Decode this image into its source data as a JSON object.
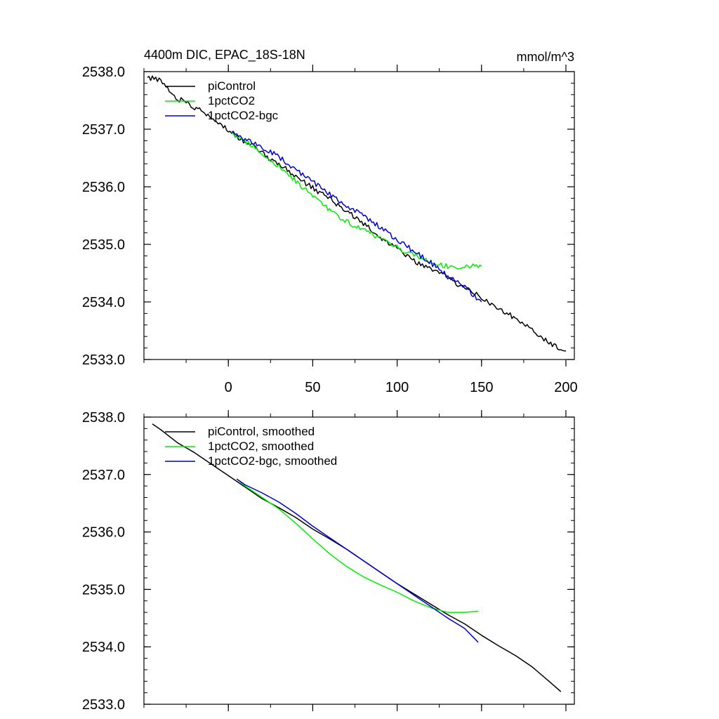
{
  "chart_data": [
    {
      "type": "line",
      "title": "4400m DIC, EPAC_18S-18N",
      "units": "mmol/m^3",
      "xlabel": "",
      "ylabel": "",
      "xlim": [
        -50,
        205
      ],
      "ylim": [
        2533.0,
        2538.0
      ],
      "xticks": [
        0,
        50,
        100,
        150,
        200
      ],
      "xtick_labels": [
        "0",
        "50",
        "100",
        "150",
        "200"
      ],
      "yticks": [
        2533,
        2534,
        2535,
        2536,
        2537,
        2538
      ],
      "ytick_labels": [
        "2533.0",
        "2534.0",
        "2535.0",
        "2536.0",
        "2537.0",
        "2538.0"
      ],
      "legend_position": "top-left",
      "series": [
        {
          "name": "piControl",
          "color": "#000000",
          "x": [
            -48,
            -40,
            -35,
            -30,
            -25,
            -20,
            -15,
            -10,
            -5,
            0,
            5,
            10,
            15,
            20,
            25,
            30,
            35,
            40,
            45,
            50,
            55,
            60,
            65,
            70,
            75,
            80,
            85,
            90,
            95,
            100,
            105,
            110,
            115,
            120,
            125,
            130,
            135,
            140,
            145,
            150,
            155,
            160,
            165,
            170,
            175,
            180,
            185,
            190,
            195,
            200
          ],
          "y": [
            2537.9,
            2537.85,
            2537.68,
            2537.52,
            2537.48,
            2537.38,
            2537.3,
            2537.2,
            2537.1,
            2536.98,
            2536.88,
            2536.78,
            2536.7,
            2536.58,
            2536.48,
            2536.4,
            2536.3,
            2536.18,
            2536.08,
            2535.98,
            2535.88,
            2535.8,
            2535.68,
            2535.58,
            2535.48,
            2535.35,
            2535.25,
            2535.12,
            2535.02,
            2534.92,
            2534.82,
            2534.72,
            2534.62,
            2534.58,
            2534.5,
            2534.42,
            2534.32,
            2534.25,
            2534.15,
            2534.08,
            2533.98,
            2533.9,
            2533.8,
            2533.72,
            2533.62,
            2533.5,
            2533.4,
            2533.3,
            2533.22,
            2533.15
          ]
        },
        {
          "name": "1pctCO2",
          "color": "#00ee00",
          "x": [
            2,
            10,
            20,
            30,
            40,
            50,
            55,
            60,
            70,
            80,
            90,
            100,
            110,
            120,
            130,
            135,
            140,
            145,
            150
          ],
          "y": [
            2536.95,
            2536.8,
            2536.58,
            2536.35,
            2536.1,
            2535.85,
            2535.72,
            2535.6,
            2535.4,
            2535.25,
            2535.1,
            2534.95,
            2534.8,
            2534.68,
            2534.62,
            2534.6,
            2534.62,
            2534.62,
            2534.62
          ]
        },
        {
          "name": "1pctCO2-bgc",
          "color": "#0000cc",
          "x": [
            2,
            10,
            20,
            30,
            40,
            50,
            60,
            70,
            80,
            90,
            100,
            110,
            120,
            130,
            140,
            150
          ],
          "y": [
            2536.95,
            2536.82,
            2536.68,
            2536.52,
            2536.3,
            2536.08,
            2535.88,
            2535.68,
            2535.5,
            2535.3,
            2535.08,
            2534.88,
            2534.68,
            2534.45,
            2534.25,
            2534.0
          ]
        }
      ]
    },
    {
      "type": "line",
      "title": "",
      "xlabel": "",
      "ylabel": "",
      "xlim": [
        -50,
        205
      ],
      "ylim": [
        2533.0,
        2538.0
      ],
      "xticks": [
        0,
        50,
        100,
        150,
        200
      ],
      "yticks": [
        2533,
        2534,
        2535,
        2536,
        2537,
        2538
      ],
      "ytick_labels": [
        "2533.0",
        "2534.0",
        "2535.0",
        "2536.0",
        "2537.0",
        "2538.0"
      ],
      "legend_position": "top-left",
      "series": [
        {
          "name": "piControl, smoothed",
          "color": "#000000",
          "x": [
            -45,
            -40,
            -30,
            -20,
            -10,
            0,
            10,
            20,
            30,
            40,
            50,
            60,
            70,
            80,
            90,
            100,
            110,
            120,
            130,
            140,
            150,
            160,
            170,
            180,
            190,
            197
          ],
          "y": [
            2537.88,
            2537.78,
            2537.55,
            2537.38,
            2537.18,
            2536.98,
            2536.78,
            2536.58,
            2536.42,
            2536.25,
            2536.05,
            2535.88,
            2535.7,
            2535.5,
            2535.3,
            2535.1,
            2534.92,
            2534.74,
            2534.56,
            2534.4,
            2534.2,
            2534.02,
            2533.85,
            2533.65,
            2533.4,
            2533.22
          ]
        },
        {
          "name": "1pctCO2, smoothed",
          "color": "#00ee00",
          "x": [
            5,
            10,
            20,
            30,
            40,
            50,
            60,
            70,
            80,
            90,
            100,
            110,
            120,
            130,
            135,
            140,
            148
          ],
          "y": [
            2536.92,
            2536.8,
            2536.6,
            2536.4,
            2536.15,
            2535.88,
            2535.62,
            2535.4,
            2535.22,
            2535.08,
            2534.95,
            2534.8,
            2534.68,
            2534.6,
            2534.6,
            2534.6,
            2534.62
          ]
        },
        {
          "name": "1pctCO2-bgc, smoothed",
          "color": "#0000cc",
          "x": [
            5,
            10,
            20,
            30,
            40,
            50,
            60,
            70,
            80,
            90,
            100,
            110,
            120,
            130,
            140,
            148
          ],
          "y": [
            2536.92,
            2536.82,
            2536.68,
            2536.52,
            2536.32,
            2536.1,
            2535.9,
            2535.7,
            2535.5,
            2535.3,
            2535.1,
            2534.9,
            2534.7,
            2534.5,
            2534.32,
            2534.08
          ]
        }
      ]
    }
  ]
}
